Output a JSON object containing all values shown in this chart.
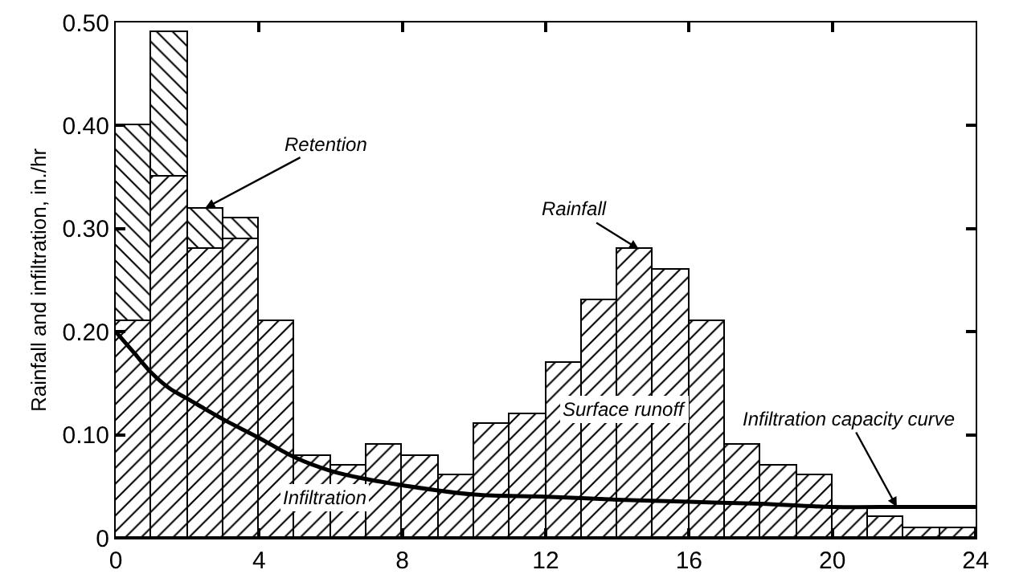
{
  "chart_data": {
    "type": "bar",
    "ylabel": "Rainfall and infiltration, in./hr",
    "stacked": true,
    "x": [
      0.5,
      1.5,
      2.5,
      3.5,
      4.5,
      5.5,
      6.5,
      7.5,
      8.5,
      9.5,
      10.5,
      11.5,
      12.5,
      13.5,
      14.5,
      15.5,
      16.5,
      17.5,
      18.5,
      19.5,
      20.5,
      21.5,
      22.5,
      23.5
    ],
    "series": [
      {
        "color": "#000000",
        "values": [
          0.21,
          0.35,
          0.28,
          0.29,
          0.21,
          0.08,
          0.07,
          0.09,
          0.08,
          0.06,
          0.11,
          0.12,
          0.17,
          0.23,
          0.28,
          0.26,
          0.21,
          0.09,
          0.07,
          0.06,
          0.03,
          0.02,
          0.01,
          0.01
        ]
      },
      {
        "color": "#000000",
        "values": [
          0.19,
          0.14,
          0.04,
          0.02,
          null,
          null,
          null,
          null,
          null,
          null,
          null,
          null,
          null,
          null,
          null,
          null,
          null,
          null,
          null,
          null,
          null,
          null,
          null,
          null
        ]
      },
      {
        "type": "line",
        "color": "#000000",
        "x": [
          0,
          0.5,
          1,
          1.5,
          2,
          3,
          4,
          5,
          6,
          7,
          8,
          10,
          12,
          14,
          16,
          18,
          20,
          22,
          24
        ],
        "values": [
          0.2,
          0.18,
          0.16,
          0.145,
          0.135,
          0.115,
          0.097,
          0.078,
          0.065,
          0.057,
          0.051,
          0.042,
          0.04,
          0.037,
          0.035,
          0.033,
          0.03,
          0.03,
          0.03
        ]
      }
    ],
    "xlim": [
      0,
      24
    ],
    "xticks": [
      0,
      4,
      8,
      12,
      16,
      20,
      24
    ],
    "ylim": [
      0,
      0.5
    ],
    "yticks": [
      0,
      {
        "value": 0.1,
        "label": "0.10"
      },
      {
        "value": 0.2,
        "label": "0.20"
      },
      {
        "value": 0.3,
        "label": "0.30"
      },
      {
        "value": 0.4,
        "label": "0.40"
      },
      {
        "value": 0.5,
        "label": "0.50"
      }
    ],
    "grid": false,
    "annotations": [
      {
        "text": "Retention",
        "x": 2.5,
        "y": 0.32
      },
      {
        "text": "Rainfall",
        "x": 14.6,
        "y": 0.28
      },
      {
        "text": "Surface runoff",
        "x": 14.2,
        "y": 0.125
      },
      "Infiltration",
      {
        "text": "Infiltration capacity curve",
        "x": 21.8,
        "y": 0.03
      }
    ]
  }
}
